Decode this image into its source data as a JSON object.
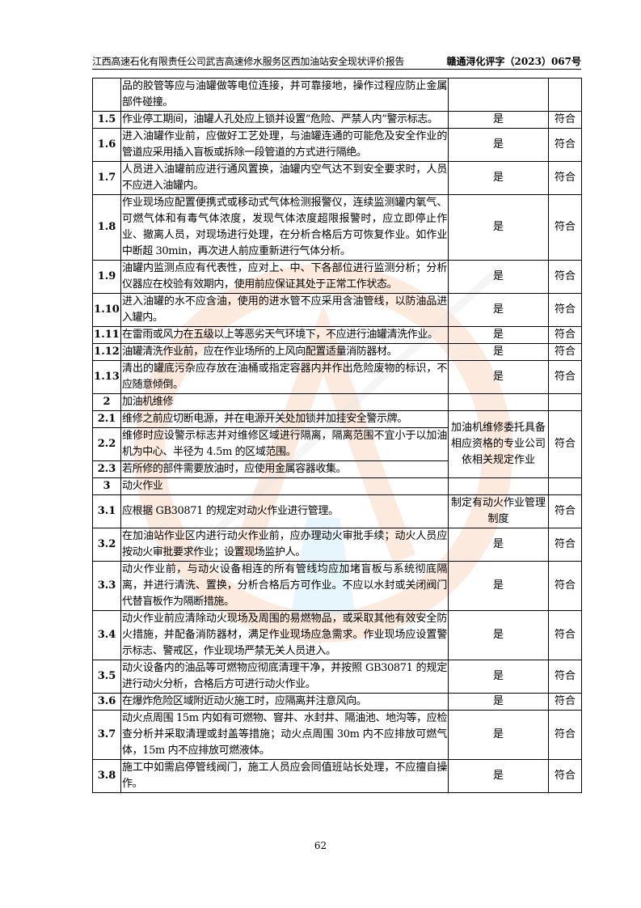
{
  "header": {
    "title": "江西高速石化有限责任公司武吉高速修水服务区西加油站安全现状评价报告",
    "doc_no": "赣通浔化评字（2023）067号"
  },
  "rows": [
    {
      "no": "",
      "text": "品的胶管等应与油罐做等电位连接，并可靠接地，操作过程应防止金属部件碰撞。",
      "c3": "",
      "c4": ""
    },
    {
      "no": "1.5",
      "text": "作业停工期间，油罐人孔处应上锁并设置“危险、严禁人内”警示标志。",
      "c3": "是",
      "c4": "符合"
    },
    {
      "no": "1.6",
      "text": "进入油罐作业前，应做好工艺处理，与油罐连通的可能危及安全作业的管道应采用插入盲板或拆除一段管道的方式进行隔绝。",
      "c3": "是",
      "c4": "符合"
    },
    {
      "no": "1.7",
      "text": "人员进入油罐前应进行通风置换，油罐内空气达不到安全要求时，人员不应进入油罐内。",
      "c3": "是",
      "c4": "符合"
    },
    {
      "no": "1.8",
      "text": "作业现场应配置便携式或移动式气体检测报警仪，连续监测罐内氧气、可燃气体和有毒气体浓度，发现气体浓度超限报警时，应立即停止作业、撤离人员，对现场进行处理，在分析合格后方可恢复作业。如作业中断超 30min，再次进人前应重新进行气体分析。",
      "c3": "是",
      "c4": "符合"
    },
    {
      "no": "1.9",
      "text": "油罐内监测点应有代表性，应对上、中、下各部位进行监测分析；分析仪器应在校验有效期内，使用前应保证其处于正常工作状态。",
      "c3": "是",
      "c4": "符合"
    },
    {
      "no": "1.10",
      "text": "进入油罐的水不应含油，使用的进水管不应采用含油管线，以防油品进入罐内。",
      "c3": "是",
      "c4": "符合"
    },
    {
      "no": "1.11",
      "text": "在雷雨或风力在五级以上等恶劣天气环境下，不应进行油罐清洗作业。",
      "c3": "是",
      "c4": "符合"
    },
    {
      "no": "1.12",
      "text": "油罐清洗作业前，应在作业场所的上风向配置适量消防器材。",
      "c3": "是",
      "c4": "符合"
    },
    {
      "no": "1.13",
      "text": "清出的罐底污杂应存放在油桶或指定容器内并作出危险废物的标识，不应随意倾倒。",
      "c3": "是",
      "c4": "符合"
    },
    {
      "no": "2",
      "text": "加油机维修",
      "c3": "",
      "c4": "",
      "section": true
    },
    {
      "no": "2.1",
      "text": "维修之前应切断电源，并在电源开关处加锁并加挂安全警示牌。",
      "c3": "加油机维修委托具备相应资格的专业公司依相关规定作业",
      "c4": "符合",
      "span": 3
    },
    {
      "no": "2.2",
      "text": "维修时应设警示标志并对维修区域进行隔离，隔离范围不宜小于以加油机为中心、半径为 4.5m 的区域范围。",
      "merged": true
    },
    {
      "no": "2.3",
      "text": "若所修的部件需要放油时，应使用金属容器收集。",
      "merged": true
    },
    {
      "no": "3",
      "text": "动火作业",
      "c3": "",
      "c4": "",
      "section": true
    },
    {
      "no": "3.1",
      "text": "应根据 GB30871 的规定对动火作业进行管理。",
      "c3": "制定有动火作业管理制度",
      "c4": "符合"
    },
    {
      "no": "3.2",
      "text": "在加油站作业区内进行动火作业前，应办理动火审批手续；动火人员应按动火审批要求作业；设置现场监护人。",
      "c3": "是",
      "c4": "符合"
    },
    {
      "no": "3.3",
      "text": "动火作业前，与动火设备相连的所有管线均应加堵盲板与系统彻底隔离，并进行清洗、置换，分析合格后方可作业。不应以水封或关闭阀门代替盲板作为隔断措施。",
      "c3": "是",
      "c4": "符合"
    },
    {
      "no": "3.4",
      "text": "动火作业前应清除动火现场及周围的易燃物品，或采取其他有效安全防火措施，并配备消防器材，满足作业现场应急需求。作业现场应设置警示标志、警戒区，作业现场严禁无关人员进入。",
      "c3": "是",
      "c4": "符合"
    },
    {
      "no": "3.5",
      "text": "动火设备内的油品等可燃物应彻底清理干净，并按照 GB30871 的规定进行动火分析，合格后方可进行动火作业。",
      "c3": "是",
      "c4": "符合"
    },
    {
      "no": "3.6",
      "text": "在爆炸危险区域附近动火施工时，应隔离并注意风向。",
      "c3": "是",
      "c4": "符合"
    },
    {
      "no": "3.7",
      "text": "动火点周围 15m 内如有可燃物、窨井、水封井、隔油池、地沟等，应检查分析并采取清理或封盖等措施；动火点周围 30m 内不应排放可燃气体，15m 内不应排放可燃液体。",
      "c3": "是",
      "c4": "符合"
    },
    {
      "no": "3.8",
      "text": "施工中如需启停管线阀门，施工人员应会同值班站长处理，不应擅自操作。",
      "c3": "是",
      "c4": "符合"
    }
  ],
  "page_number": "62",
  "watermark": {
    "colors": {
      "ring": "#f5a77a",
      "accent": "#7fd0ee",
      "gray": "#c8c8c8"
    }
  }
}
